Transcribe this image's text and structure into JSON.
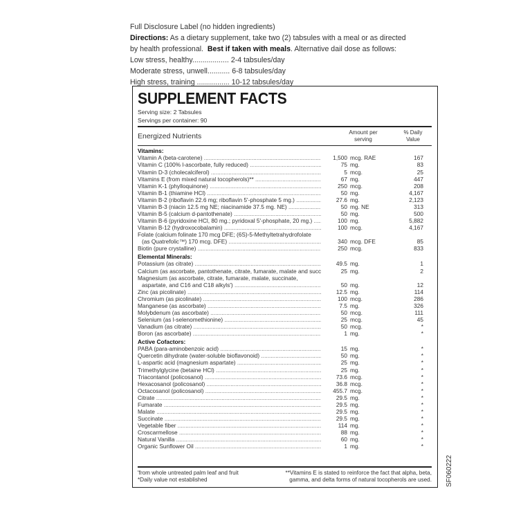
{
  "intro": {
    "disclosure": "Full Disclosure Label (no hidden ingredients)",
    "directions_label": "Directions:",
    "directions_text1": " As a dietary supplement, take two (2) tabsules with a meal or as directed",
    "directions_text2": "by health professional.  ",
    "best_label": "Best if taken with meals",
    "directions_text3": ". Alternative dail dose as follows:",
    "dose_lines": [
      "Low stress, healthy.................. 2-4 tabsules/day",
      "Moderate stress, unwell........... 6-8 tabsules/day",
      "High stress, training ................ 10-12 tabsules/day"
    ]
  },
  "facts": {
    "title": "SUPPLEMENT FACTS",
    "serving_size": "Serving size: 2 Tabsules",
    "servings_per_container": "Servings per container: 90",
    "header_label": "Energized Nutrients",
    "header_amount_1": "Amount per",
    "header_amount_2": "serving",
    "header_dv_1": "% Daily",
    "header_dv_2": "Value",
    "sections": [
      {
        "title": "Vitamins:",
        "rows": [
          {
            "name": "Vitamin A (beta-carotene)",
            "amount": "1,500",
            "unit": "mcg. RAE",
            "dv": "167"
          },
          {
            "name": "Vitamin C (100% l-ascorbate, fully reduced)",
            "amount": "75",
            "unit": "mg.",
            "dv": "83"
          },
          {
            "name": "Vitamin D-3 (cholecalciferol)",
            "amount": "5",
            "unit": "mcg.",
            "dv": "25"
          },
          {
            "name": "Vitamins E (from mixed natural tocopherols)**",
            "amount": "67",
            "unit": "mg.",
            "dv": "447"
          },
          {
            "name": "Vitamin K-1 (phylloquinone)",
            "amount": "250",
            "unit": "mcg.",
            "dv": "208"
          },
          {
            "name": "Vitamin B-1 (thiamine HCl)",
            "amount": "50",
            "unit": "mg.",
            "dv": "4,167"
          },
          {
            "name": "Vitamin B-2 (riboflavin 22.6 mg; riboflavin 5'-phosphate 5 mg.)",
            "amount": "27.6",
            "unit": "mg.",
            "dv": "2,123"
          },
          {
            "name": "Vitamin B-3 (niacin 12.5 mg NE; niacinamide 37.5 mg. NE)",
            "amount": "50",
            "unit": "mg. NE",
            "dv": "313"
          },
          {
            "name": "Vitamin B-5 (calcium d-pantothenate)",
            "amount": "50",
            "unit": "mg.",
            "dv": "500"
          },
          {
            "name": "Vitamin B-6 (pyridoxine HCl, 80 mg.; pyridoxal 5'-phosphate, 20 mg.)",
            "amount": "100",
            "unit": "mg.",
            "dv": "5,882"
          },
          {
            "name": "Vitamin B-12 (hydroxocobalamin)",
            "amount": "100",
            "unit": "mcg.",
            "dv": "4,167"
          },
          {
            "first_line": "Folate (calcium folinate 170 mcg DFE; (6S)-5-Methyltetrahydrofolate",
            "name": "(as Quatrefolic™) 170 mcg. DFE)",
            "amount": "340",
            "unit": "mcg. DFE",
            "dv": "85"
          },
          {
            "name": "Biotin (pure crystalline)",
            "amount": "250",
            "unit": "mcg.",
            "dv": "833"
          }
        ]
      },
      {
        "title": "Elemental Minerals:",
        "rows": [
          {
            "name": "Potassium (as citrate)",
            "amount": "49.5",
            "unit": "mg.",
            "dv": "1"
          },
          {
            "name": "Calcium (as ascorbate, pantothenate, citrate, fumarate, malate and succinate)",
            "amount": "25",
            "unit": "mg.",
            "dv": "2"
          },
          {
            "first_line": "Magnesium (as ascorbate, citrate, fumarate, malate, succinate,",
            "name": "aspartate, and C16 and C18 alkyls')",
            "amount": "50",
            "unit": "mg.",
            "dv": "12"
          },
          {
            "name": "Zinc (as picolinate)",
            "amount": "12.5",
            "unit": "mg.",
            "dv": "114"
          },
          {
            "name": "Chromium (as picolinate)",
            "amount": "100",
            "unit": "mcg.",
            "dv": "286"
          },
          {
            "name": "Manganese (as ascorbate)",
            "amount": "7.5",
            "unit": "mg.",
            "dv": "326"
          },
          {
            "name": "Molybdenum (as ascorbate)",
            "amount": "50",
            "unit": "mcg.",
            "dv": "111"
          },
          {
            "name": "Selenium (as l-selenomethionine)",
            "amount": "25",
            "unit": "mcg.",
            "dv": "45"
          },
          {
            "name": "Vanadium (as citrate)",
            "amount": "50",
            "unit": "mcg.",
            "dv": "*"
          },
          {
            "name": "Boron (as ascorbate)",
            "amount": "1",
            "unit": "mg.",
            "dv": "*"
          }
        ]
      },
      {
        "title": "Active Cofactors:",
        "rows": [
          {
            "name": "PABA (para-aminobenzoic acid)",
            "amount": "15",
            "unit": "mg.",
            "dv": "*"
          },
          {
            "name": "Quercetin dihydrate (water-soluble bioflavonoid)",
            "amount": "50",
            "unit": "mg.",
            "dv": "*"
          },
          {
            "name": "L-aspartic acid (magnesium aspartate)",
            "amount": "25",
            "unit": "mg.",
            "dv": "*"
          },
          {
            "name": "Trimethylglycine (betaine HCl)",
            "amount": "25",
            "unit": "mg.",
            "dv": "*"
          },
          {
            "name": "Triacontanol (policosanol)",
            "amount": "73.6",
            "unit": "mcg.",
            "dv": "*"
          },
          {
            "name": "Hexacosanol (policosanol)",
            "amount": "36.8",
            "unit": "mcg.",
            "dv": "*"
          },
          {
            "name": "Octacosanol (policosanol)",
            "amount": "455.7",
            "unit": "mcg.",
            "dv": "*"
          },
          {
            "name": "Citrate",
            "amount": "29.5",
            "unit": "mg.",
            "dv": "*"
          },
          {
            "name": "Fumarate",
            "amount": "29.5",
            "unit": "mg.",
            "dv": "*"
          },
          {
            "name": "Malate",
            "amount": "29.5",
            "unit": "mg.",
            "dv": "*"
          },
          {
            "name": "Succinate",
            "amount": "29.5",
            "unit": "mg.",
            "dv": "*"
          },
          {
            "name": "Vegetable fiber",
            "amount": "114",
            "unit": "mg.",
            "dv": "*"
          },
          {
            "name": "Croscarmellose",
            "amount": "88",
            "unit": "mg.",
            "dv": "*"
          },
          {
            "name": "Natural Vanilla",
            "amount": "60",
            "unit": "mg.",
            "dv": "*"
          },
          {
            "name": "Organic Sunflower Oil",
            "amount": "1",
            "unit": "mg.",
            "dv": "*"
          }
        ]
      }
    ],
    "footnote_left_1": "'from whole untreated palm leaf and fruit",
    "footnote_left_2": "*Daily value not established",
    "footnote_right_1": "**Vitamins E is stated to reinforce the fact that alpha, beta,",
    "footnote_right_2": "gamma, and delta forms of natural tocopherols are used."
  },
  "side_code": "SF060222"
}
